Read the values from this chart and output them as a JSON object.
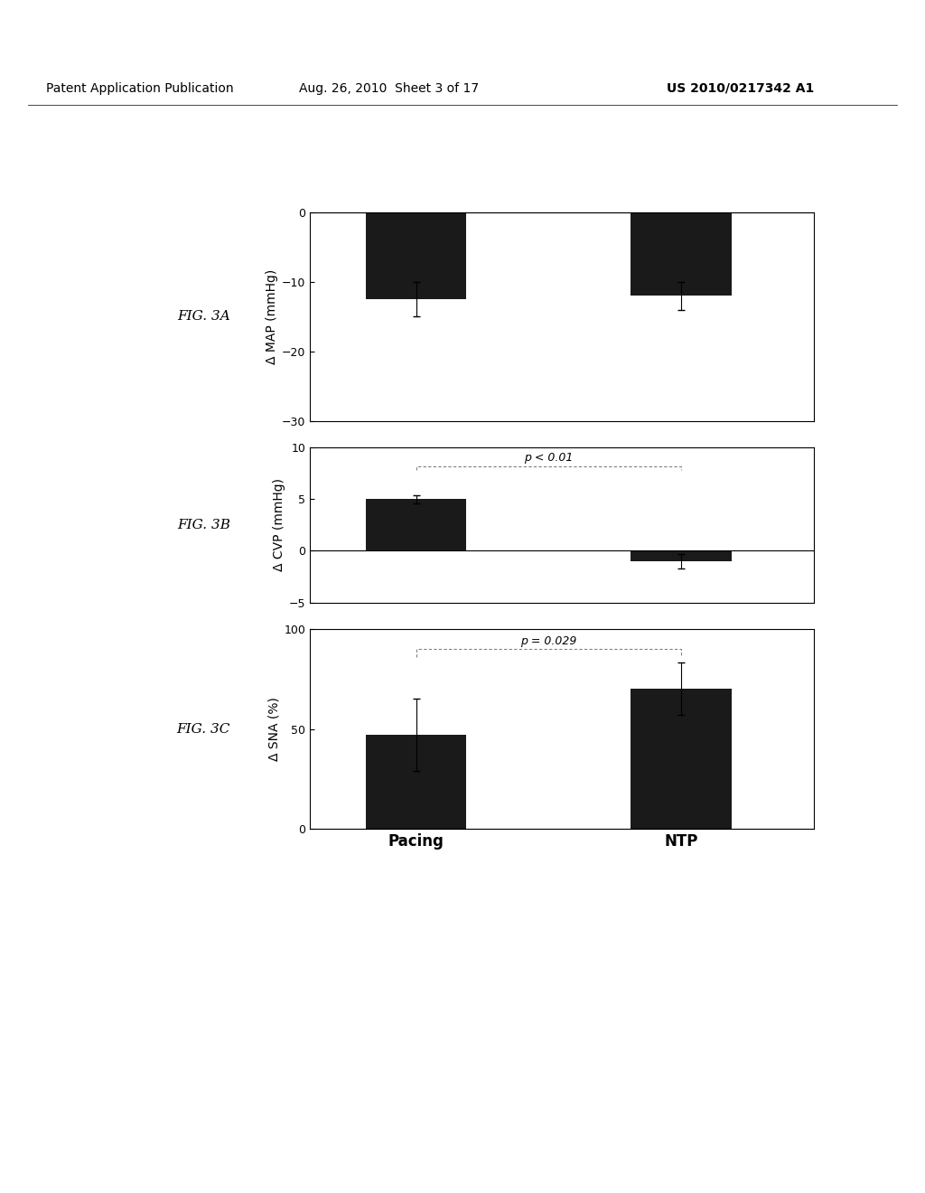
{
  "fig_labels": [
    "FIG. 3A",
    "FIG. 3B",
    "FIG. 3C"
  ],
  "categories": [
    "Pacing",
    "NTP"
  ],
  "bar_color": "#1a1a1a",
  "bar_width": 0.38,
  "background_color": "#ffffff",
  "panel_A": {
    "values": [
      -12.5,
      -12.0
    ],
    "errors": [
      2.5,
      2.0
    ],
    "ylim": [
      -30,
      0
    ],
    "yticks": [
      0,
      -10,
      -20,
      -30
    ],
    "ylabel": "Δ MAP (mmHg)",
    "significance": null
  },
  "panel_B": {
    "values": [
      5.0,
      -1.0
    ],
    "errors": [
      0.4,
      0.7
    ],
    "ylim": [
      -5,
      10
    ],
    "yticks": [
      -5,
      0,
      5,
      10
    ],
    "ylabel": "Δ CVP (mmHg)",
    "significance": "p < 0.01"
  },
  "panel_C": {
    "values": [
      47,
      70
    ],
    "errors": [
      18,
      13
    ],
    "ylim": [
      0,
      100
    ],
    "yticks": [
      0,
      50,
      100
    ],
    "ylabel": "Δ SNA (%)",
    "significance": "p = 0.029"
  },
  "header_left": "Patent Application Publication",
  "header_mid": "Aug. 26, 2010  Sheet 3 of 17",
  "header_right": "US 2010/0217342 A1",
  "font_size_header": 10,
  "font_size_axis_label": 10,
  "font_size_tick": 9,
  "font_size_fig_label": 11,
  "font_size_xticklabel": 12
}
